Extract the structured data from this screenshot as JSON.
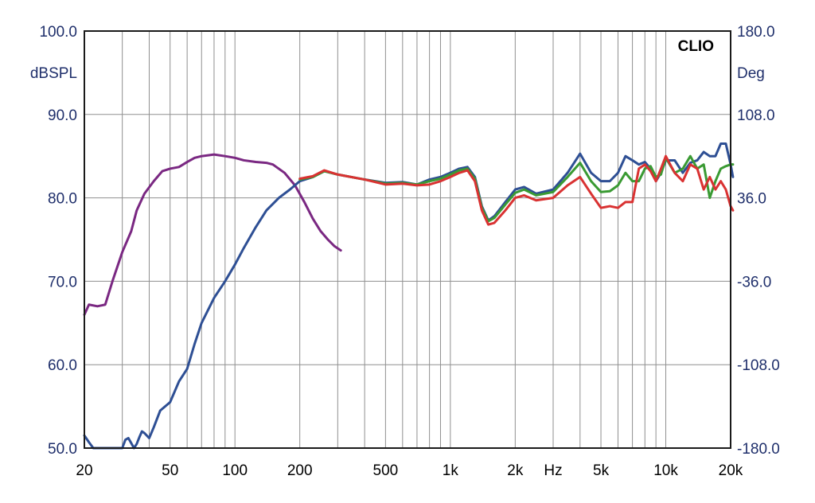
{
  "chart_data": {
    "type": "line",
    "brand": "CLIO",
    "x_axis": {
      "scale": "log",
      "range": [
        20,
        20000
      ],
      "tick_values": [
        20,
        50,
        100,
        200,
        500,
        1000,
        2000,
        5000,
        10000,
        20000
      ],
      "tick_labels": [
        "20",
        "50",
        "100",
        "200",
        "500",
        "1k",
        "2k",
        "5k",
        "10k",
        "20k"
      ],
      "unit": "Hz",
      "unit_position_value": 3000
    },
    "y_left": {
      "label": "dBSPL",
      "range": [
        50,
        100
      ],
      "tick_values": [
        100,
        90,
        80,
        70,
        60,
        50
      ],
      "tick_labels": [
        "100.0",
        "90.0",
        "80.0",
        "70.0",
        "60.0",
        "50.0"
      ]
    },
    "y_right": {
      "label": "Deg",
      "range": [
        -180,
        180
      ],
      "tick_labels": [
        "180.0",
        "108.0",
        "36.0",
        "-36.0",
        "-108.0",
        "-180.0"
      ]
    },
    "grid": true,
    "series": [
      {
        "color": "#7a2882",
        "points": [
          [
            20,
            66
          ],
          [
            21,
            67.2
          ],
          [
            23,
            67
          ],
          [
            25,
            67.2
          ],
          [
            27,
            70
          ],
          [
            30,
            73.5
          ],
          [
            33,
            76
          ],
          [
            35,
            78.5
          ],
          [
            38,
            80.5
          ],
          [
            42,
            82
          ],
          [
            46,
            83.2
          ],
          [
            50,
            83.5
          ],
          [
            55,
            83.7
          ],
          [
            60,
            84.3
          ],
          [
            65,
            84.8
          ],
          [
            70,
            85
          ],
          [
            80,
            85.2
          ],
          [
            90,
            85
          ],
          [
            100,
            84.8
          ],
          [
            110,
            84.5
          ],
          [
            125,
            84.3
          ],
          [
            140,
            84.2
          ],
          [
            150,
            84
          ],
          [
            170,
            83
          ],
          [
            190,
            81.5
          ],
          [
            210,
            79.5
          ],
          [
            230,
            77.5
          ],
          [
            250,
            76
          ],
          [
            270,
            75
          ],
          [
            290,
            74.2
          ],
          [
            310,
            73.7
          ]
        ]
      },
      {
        "color": "#2e4f94",
        "points": [
          [
            20,
            51.5
          ],
          [
            21,
            50.7
          ],
          [
            22,
            50
          ],
          [
            30,
            50
          ],
          [
            31,
            51
          ],
          [
            32,
            51.2
          ],
          [
            33,
            50.6
          ],
          [
            34,
            50
          ],
          [
            35,
            50.5
          ],
          [
            36,
            51.3
          ],
          [
            37,
            52
          ],
          [
            38,
            51.8
          ],
          [
            40,
            51.2
          ],
          [
            42,
            52.5
          ],
          [
            45,
            54.5
          ],
          [
            50,
            55.5
          ],
          [
            55,
            58
          ],
          [
            60,
            59.5
          ],
          [
            65,
            62.5
          ],
          [
            70,
            65
          ],
          [
            80,
            68
          ],
          [
            90,
            70
          ],
          [
            100,
            72
          ],
          [
            110,
            74
          ],
          [
            125,
            76.5
          ],
          [
            140,
            78.5
          ],
          [
            160,
            80
          ],
          [
            180,
            81
          ],
          [
            200,
            82
          ],
          [
            230,
            82.5
          ],
          [
            260,
            83.2
          ],
          [
            300,
            82.8
          ],
          [
            400,
            82.2
          ],
          [
            500,
            81.8
          ],
          [
            600,
            81.9
          ],
          [
            700,
            81.6
          ],
          [
            800,
            82.2
          ],
          [
            900,
            82.5
          ],
          [
            1000,
            83
          ],
          [
            1100,
            83.5
          ],
          [
            1200,
            83.7
          ],
          [
            1300,
            82.5
          ],
          [
            1400,
            79
          ],
          [
            1500,
            77.3
          ],
          [
            1600,
            77.8
          ],
          [
            1800,
            79.5
          ],
          [
            2000,
            81
          ],
          [
            2200,
            81.3
          ],
          [
            2500,
            80.5
          ],
          [
            3000,
            81
          ],
          [
            3500,
            83
          ],
          [
            4000,
            85.3
          ],
          [
            4500,
            83
          ],
          [
            5000,
            82
          ],
          [
            5500,
            82
          ],
          [
            6000,
            83
          ],
          [
            6500,
            85
          ],
          [
            7000,
            84.5
          ],
          [
            7500,
            84
          ],
          [
            8000,
            84.3
          ],
          [
            8500,
            83.5
          ],
          [
            9000,
            82
          ],
          [
            9500,
            83
          ],
          [
            10000,
            84.5
          ],
          [
            11000,
            84.5
          ],
          [
            12000,
            83
          ],
          [
            13000,
            84.2
          ],
          [
            14000,
            84.5
          ],
          [
            15000,
            85.5
          ],
          [
            16000,
            85
          ],
          [
            17000,
            85
          ],
          [
            18000,
            86.5
          ],
          [
            19000,
            86.5
          ],
          [
            20000,
            84
          ],
          [
            20500,
            82.5
          ]
        ]
      },
      {
        "color": "#3a9a33",
        "points": [
          [
            200,
            82.2
          ],
          [
            230,
            82.5
          ],
          [
            260,
            83.2
          ],
          [
            300,
            82.8
          ],
          [
            400,
            82.2
          ],
          [
            500,
            81.7
          ],
          [
            600,
            81.8
          ],
          [
            700,
            81.6
          ],
          [
            800,
            82
          ],
          [
            900,
            82.3
          ],
          [
            1000,
            82.8
          ],
          [
            1100,
            83.3
          ],
          [
            1200,
            83.5
          ],
          [
            1300,
            82.3
          ],
          [
            1400,
            78.8
          ],
          [
            1500,
            77.2
          ],
          [
            1600,
            77.6
          ],
          [
            1800,
            79.2
          ],
          [
            2000,
            80.6
          ],
          [
            2200,
            81
          ],
          [
            2500,
            80.3
          ],
          [
            3000,
            80.7
          ],
          [
            3500,
            82.5
          ],
          [
            4000,
            84.2
          ],
          [
            4500,
            82
          ],
          [
            5000,
            80.7
          ],
          [
            5500,
            80.8
          ],
          [
            6000,
            81.5
          ],
          [
            6500,
            83
          ],
          [
            7000,
            82
          ],
          [
            7500,
            82
          ],
          [
            8000,
            83.5
          ],
          [
            8500,
            83.8
          ],
          [
            9000,
            82.5
          ],
          [
            9500,
            82.8
          ],
          [
            10000,
            84.8
          ],
          [
            11000,
            83
          ],
          [
            12000,
            83.5
          ],
          [
            13000,
            85
          ],
          [
            14000,
            83.5
          ],
          [
            15000,
            84
          ],
          [
            16000,
            80
          ],
          [
            17000,
            82
          ],
          [
            18000,
            83.5
          ],
          [
            19000,
            83.8
          ],
          [
            20000,
            84
          ],
          [
            20500,
            84
          ]
        ]
      },
      {
        "color": "#d93232",
        "points": [
          [
            200,
            82.3
          ],
          [
            230,
            82.6
          ],
          [
            260,
            83.3
          ],
          [
            300,
            82.8
          ],
          [
            400,
            82.2
          ],
          [
            500,
            81.6
          ],
          [
            600,
            81.7
          ],
          [
            700,
            81.5
          ],
          [
            800,
            81.6
          ],
          [
            900,
            82
          ],
          [
            1000,
            82.5
          ],
          [
            1100,
            83
          ],
          [
            1200,
            83.3
          ],
          [
            1300,
            82
          ],
          [
            1400,
            78.5
          ],
          [
            1500,
            76.8
          ],
          [
            1600,
            77
          ],
          [
            1800,
            78.5
          ],
          [
            2000,
            80
          ],
          [
            2200,
            80.3
          ],
          [
            2500,
            79.7
          ],
          [
            3000,
            80
          ],
          [
            3500,
            81.5
          ],
          [
            4000,
            82.5
          ],
          [
            4500,
            80.5
          ],
          [
            5000,
            78.8
          ],
          [
            5500,
            79
          ],
          [
            6000,
            78.8
          ],
          [
            6500,
            79.5
          ],
          [
            7000,
            79.5
          ],
          [
            7500,
            83.5
          ],
          [
            8000,
            84
          ],
          [
            8500,
            83.2
          ],
          [
            9000,
            82
          ],
          [
            9500,
            83.5
          ],
          [
            10000,
            85
          ],
          [
            11000,
            83
          ],
          [
            12000,
            82
          ],
          [
            13000,
            84
          ],
          [
            14000,
            83.5
          ],
          [
            15000,
            81
          ],
          [
            16000,
            82.5
          ],
          [
            17000,
            81
          ],
          [
            18000,
            82
          ],
          [
            19000,
            81
          ],
          [
            20000,
            79
          ],
          [
            20500,
            78.5
          ]
        ]
      }
    ]
  }
}
